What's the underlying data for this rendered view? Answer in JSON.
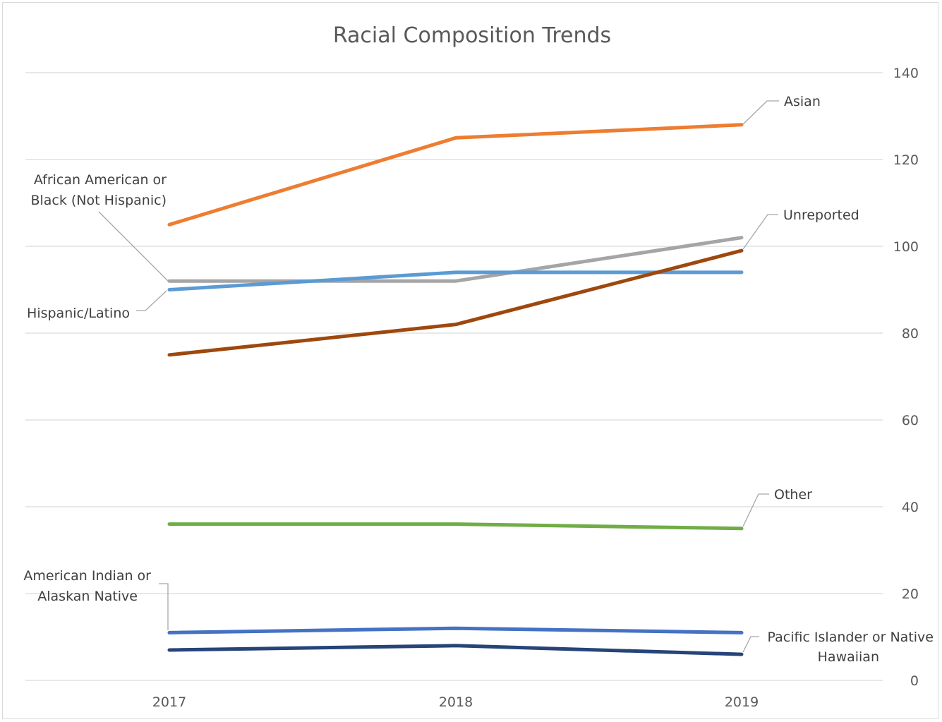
{
  "chart_data": {
    "type": "line",
    "title": "Racial Composition Trends",
    "xlabel": "",
    "ylabel": "",
    "categories": [
      "2017",
      "2018",
      "2019"
    ],
    "ylim": [
      0,
      140
    ],
    "y_ticks": [
      "0",
      "20",
      "40",
      "60",
      "80",
      "100",
      "120",
      "140"
    ],
    "y_axis_side": "right",
    "grid": true,
    "legend": "none (series labeled directly with leader lines)",
    "series": [
      {
        "name": "Asian",
        "label_lines": [
          "Asian"
        ],
        "label_at": "2019",
        "color": "#ED7D31",
        "values": [
          105,
          125,
          128
        ]
      },
      {
        "name": "African American or Black (Not Hispanic)",
        "label_lines": [
          "African American or",
          "Black (Not Hispanic)"
        ],
        "label_at": "2017",
        "color": "#A5A5A5",
        "values": [
          92,
          92,
          102
        ]
      },
      {
        "name": "Hispanic/Latino",
        "label_lines": [
          "Hispanic/Latino"
        ],
        "label_at": "2017",
        "color": "#5B9BD5",
        "values": [
          90,
          94,
          94
        ]
      },
      {
        "name": "Unreported",
        "label_lines": [
          "Unreported"
        ],
        "label_at": "2019",
        "color": "#9E480E",
        "values": [
          75,
          82,
          99
        ]
      },
      {
        "name": "Other",
        "label_lines": [
          "Other"
        ],
        "label_at": "2019",
        "color": "#70AD47",
        "values": [
          36,
          36,
          35
        ]
      },
      {
        "name": "American Indian or Alaskan Native",
        "label_lines": [
          "American Indian or",
          "Alaskan Native"
        ],
        "label_at": "2017",
        "color": "#4472C4",
        "values": [
          11,
          12,
          11
        ]
      },
      {
        "name": "Pacific Islander or Native Hawaiian",
        "label_lines": [
          "Pacific Islander or Native",
          "Hawaiian"
        ],
        "label_at": "2019",
        "color": "#264478",
        "values": [
          7,
          8,
          6
        ]
      }
    ]
  }
}
